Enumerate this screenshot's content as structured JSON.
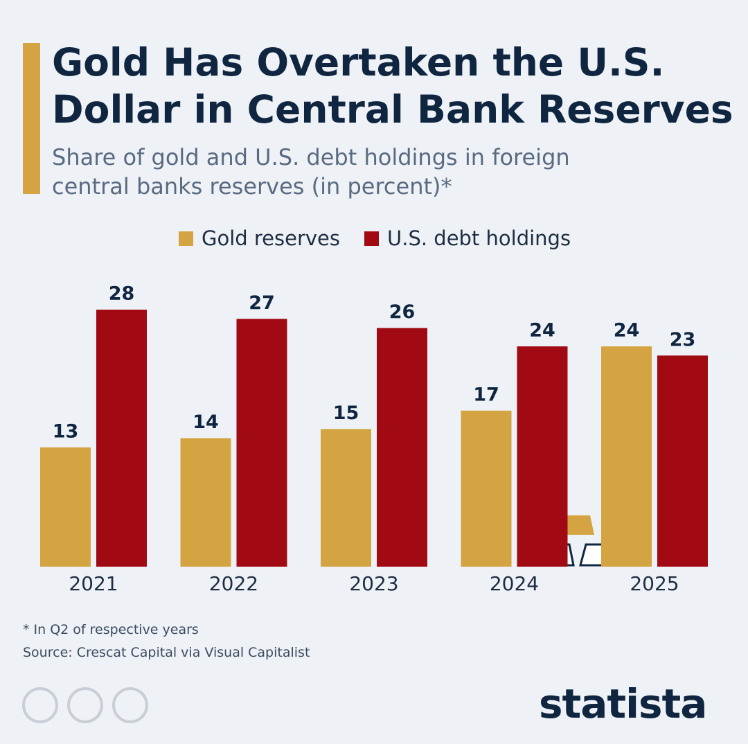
{
  "chart_data": {
    "type": "bar",
    "title": "Gold Has Overtaken the U.S. Dollar in Central Bank Reserves",
    "subtitle": "Share of gold and U.S. debt holdings in foreign central banks reserves (in percent)*",
    "categories": [
      "2021",
      "2022",
      "2023",
      "2024",
      "2025"
    ],
    "series": [
      {
        "name": "Gold reserves",
        "color": "#d4a443",
        "values": [
          13,
          14,
          15,
          17,
          24
        ]
      },
      {
        "name": "U.S. debt holdings",
        "color": "#a10a13",
        "values": [
          28,
          27,
          26,
          24,
          23
        ]
      }
    ],
    "ylim": [
      0,
      28
    ],
    "notes": [
      "* In Q2 of respective years",
      "Source: Crescat Capital via Visual Capitalist"
    ],
    "brand": "statista"
  }
}
